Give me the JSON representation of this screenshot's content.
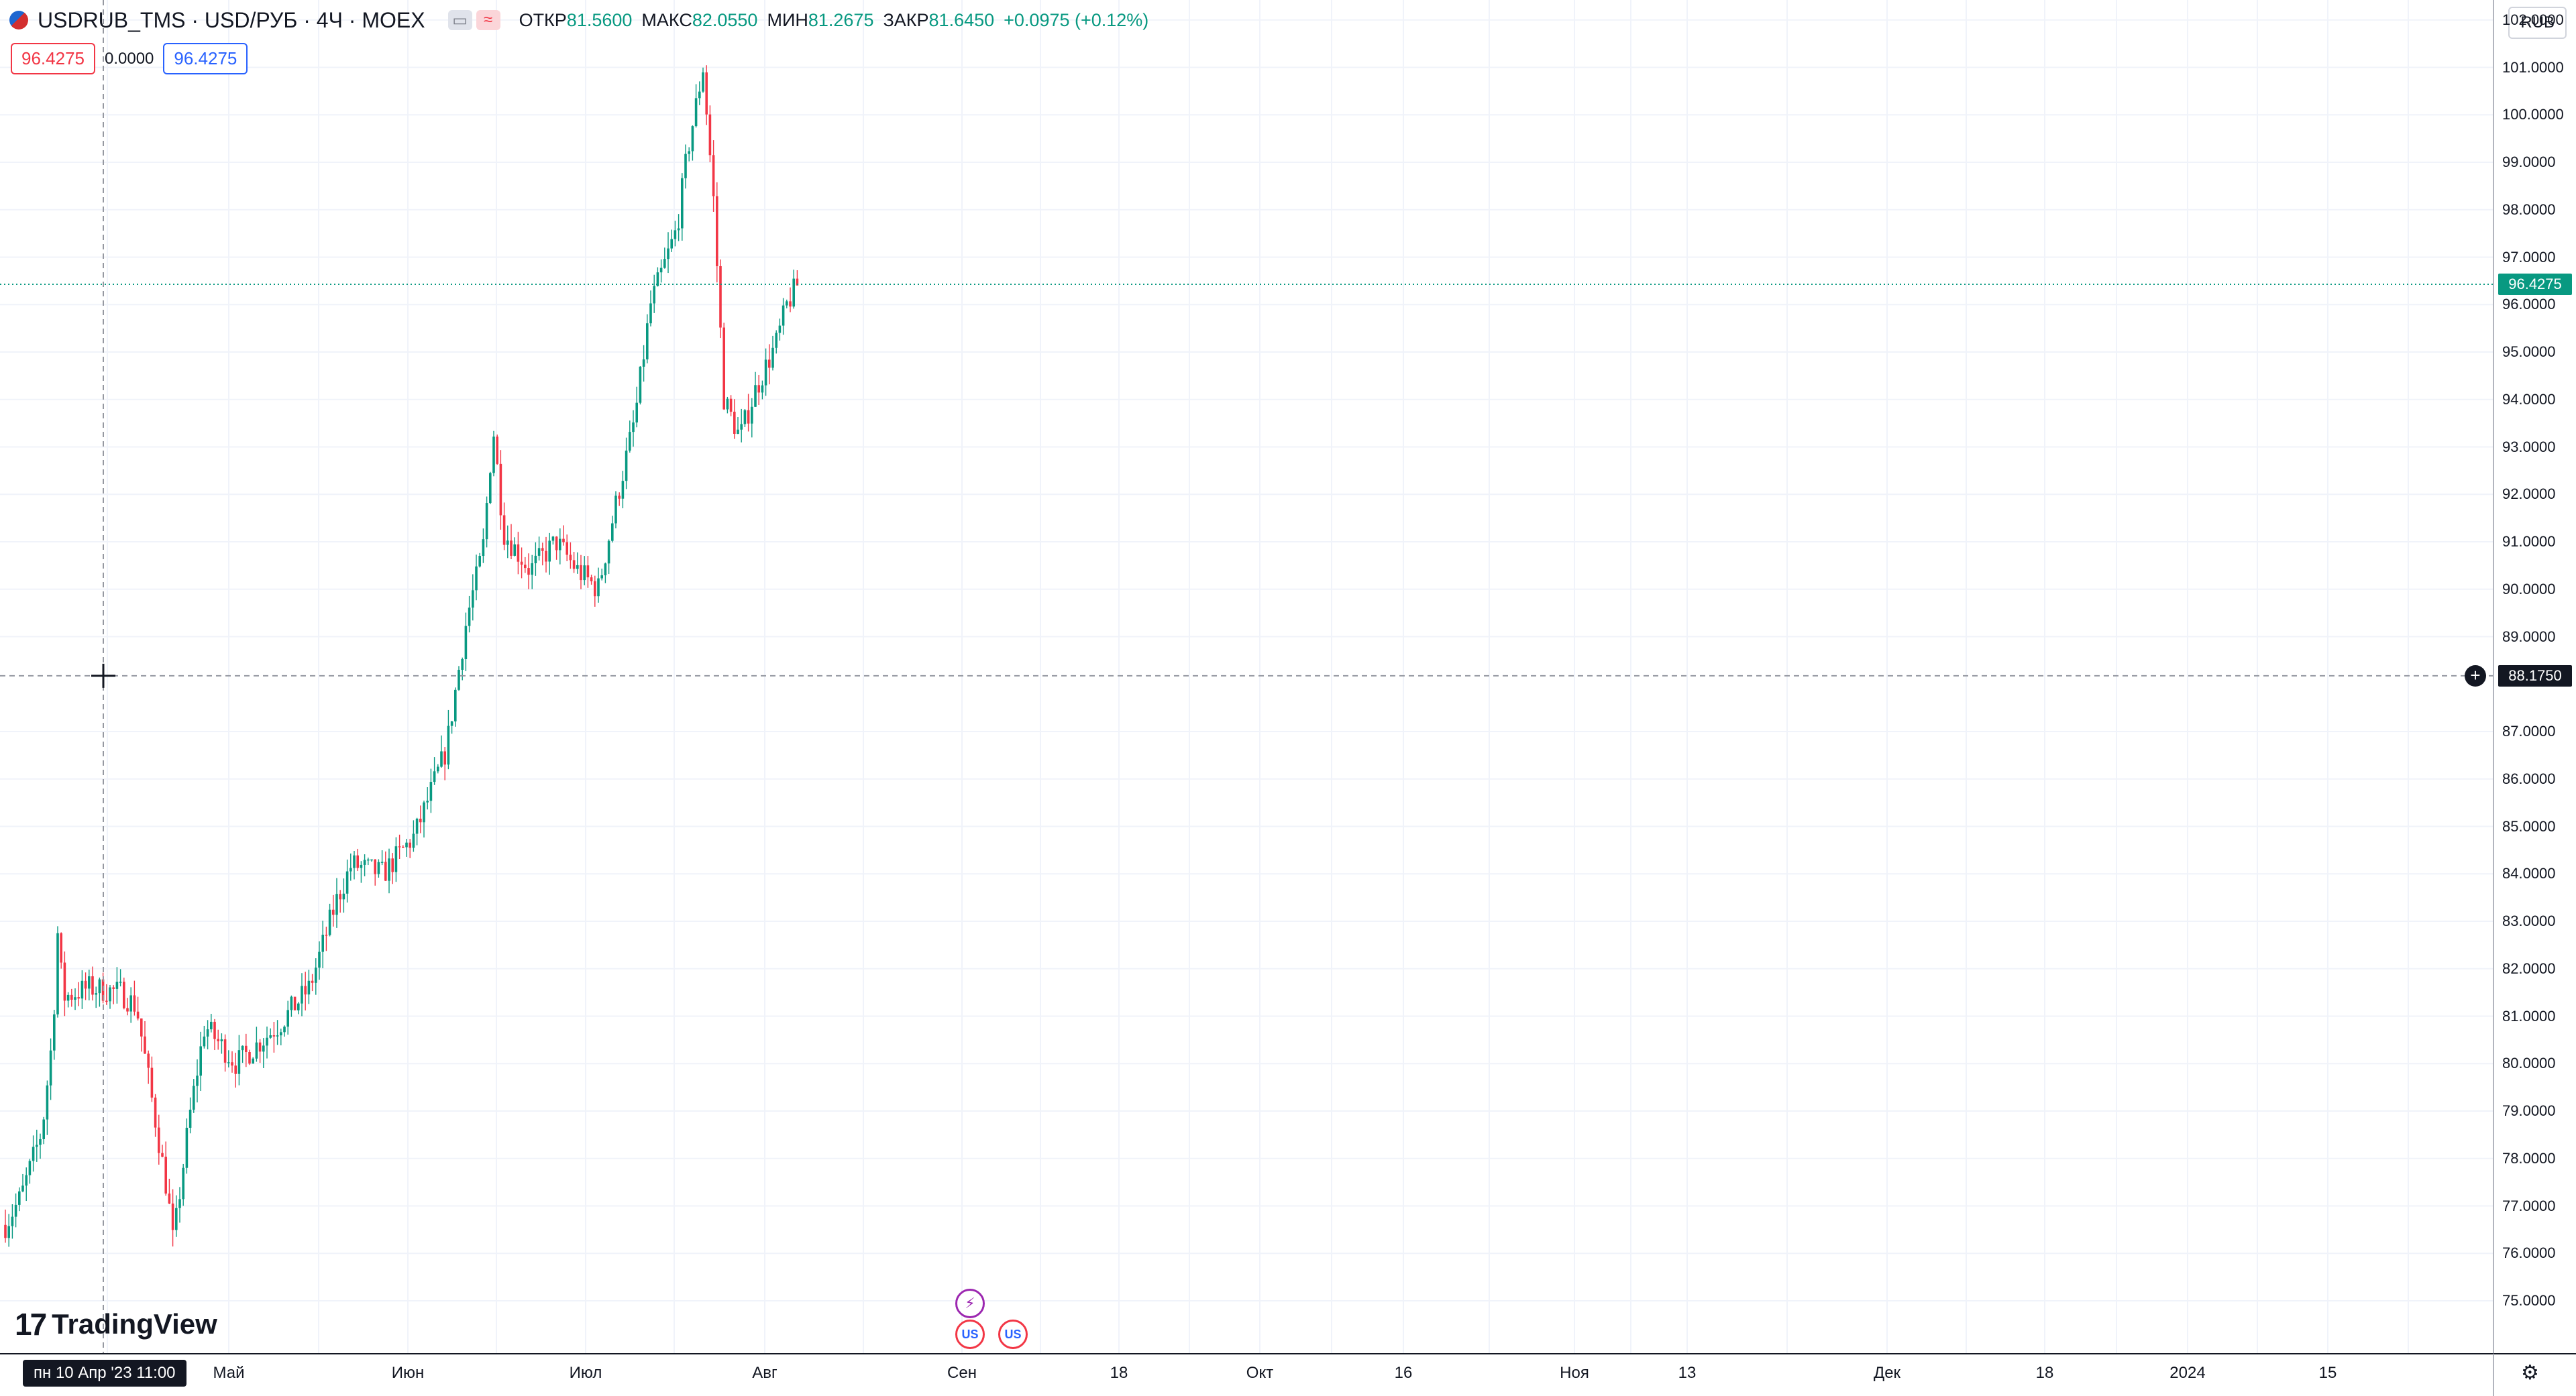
{
  "header": {
    "symbol_title": "USDRUB_TMS · USD/РУБ · 4Ч · MOEX",
    "ohlc": [
      {
        "label": "ОТКР",
        "value": "81.5600"
      },
      {
        "label": "МАКС",
        "value": "82.0550"
      },
      {
        "label": "МИН",
        "value": "81.2675"
      },
      {
        "label": "ЗАКР",
        "value": "81.6450"
      }
    ],
    "change": "+0.0975 (+0.12%)",
    "badge_icons": [
      "chart-style-icon",
      "compare-icon"
    ]
  },
  "trade": {
    "sell_price": "96.4275",
    "spread": "0.0000",
    "buy_price": "96.4275"
  },
  "currency_button": "RUB",
  "branding": "TradingView",
  "price_axis": {
    "labels": [
      "102.0000",
      "101.0000",
      "100.0000",
      "99.0000",
      "98.0000",
      "97.0000",
      "96.0000",
      "95.0000",
      "94.0000",
      "93.0000",
      "92.0000",
      "91.0000",
      "90.0000",
      "89.0000",
      "87.0000",
      "86.0000",
      "85.0000",
      "84.0000",
      "83.0000",
      "82.0000",
      "81.0000",
      "80.0000",
      "79.0000",
      "78.0000",
      "77.0000",
      "76.0000",
      "75.0000"
    ],
    "last_price": "96.4275",
    "crosshair_price": "88.1750"
  },
  "time_axis": {
    "labels": [
      "Май",
      "Июн",
      "Июл",
      "Авг",
      "Сен",
      "18",
      "Окт",
      "16",
      "Ноя",
      "13",
      "Дек",
      "18",
      "2024",
      "15"
    ],
    "crosshair_time": "пн 10 Апр '23   11:00"
  },
  "colors": {
    "up": "#089981",
    "down": "#f23645",
    "grid": "#f0f3fa",
    "crosshair": "#9598a1"
  },
  "chart_data": {
    "type": "candlestick",
    "symbol": "USDRUB_TMS",
    "interval": "4Ч",
    "ylim": [
      74.6,
      102.5
    ],
    "price_path": [
      [
        "2023-04-03",
        76.6
      ],
      [
        "2023-04-06",
        77.2
      ],
      [
        "2023-04-10",
        78.6
      ],
      [
        "2023-04-12",
        80.6
      ],
      [
        "2023-04-13",
        82.8
      ],
      [
        "2023-04-14",
        81.4
      ],
      [
        "2023-04-19",
        81.6
      ],
      [
        "2023-04-25",
        81.5
      ],
      [
        "2023-04-28",
        81.2
      ],
      [
        "2023-05-01",
        79.2
      ],
      [
        "2023-05-04",
        77.2
      ],
      [
        "2023-05-05",
        76.2
      ],
      [
        "2023-05-08",
        78.8
      ],
      [
        "2023-05-11",
        80.8
      ],
      [
        "2023-05-17",
        80.0
      ],
      [
        "2023-05-25",
        80.8
      ],
      [
        "2023-05-31",
        81.6
      ],
      [
        "2023-06-05",
        83.4
      ],
      [
        "2023-06-08",
        84.2
      ],
      [
        "2023-06-14",
        84.0
      ],
      [
        "2023-06-20",
        84.8
      ],
      [
        "2023-06-26",
        86.6
      ],
      [
        "2023-06-30",
        89.4
      ],
      [
        "2023-07-03",
        90.8
      ],
      [
        "2023-07-05",
        93.4
      ],
      [
        "2023-07-07",
        91.2
      ],
      [
        "2023-07-12",
        90.4
      ],
      [
        "2023-07-17",
        91.0
      ],
      [
        "2023-07-21",
        90.4
      ],
      [
        "2023-07-25",
        90.0
      ],
      [
        "2023-07-28",
        91.6
      ],
      [
        "2023-08-01",
        93.6
      ],
      [
        "2023-08-04",
        96.0
      ],
      [
        "2023-08-09",
        97.6
      ],
      [
        "2023-08-11",
        99.2
      ],
      [
        "2023-08-14",
        101.0
      ],
      [
        "2023-08-16",
        98.2
      ],
      [
        "2023-08-18",
        94.0
      ],
      [
        "2023-08-21",
        93.2
      ],
      [
        "2023-08-24",
        94.2
      ],
      [
        "2023-08-28",
        95.2
      ],
      [
        "2023-08-30",
        96.0
      ],
      [
        "2023-09-01",
        96.4275
      ]
    ]
  }
}
